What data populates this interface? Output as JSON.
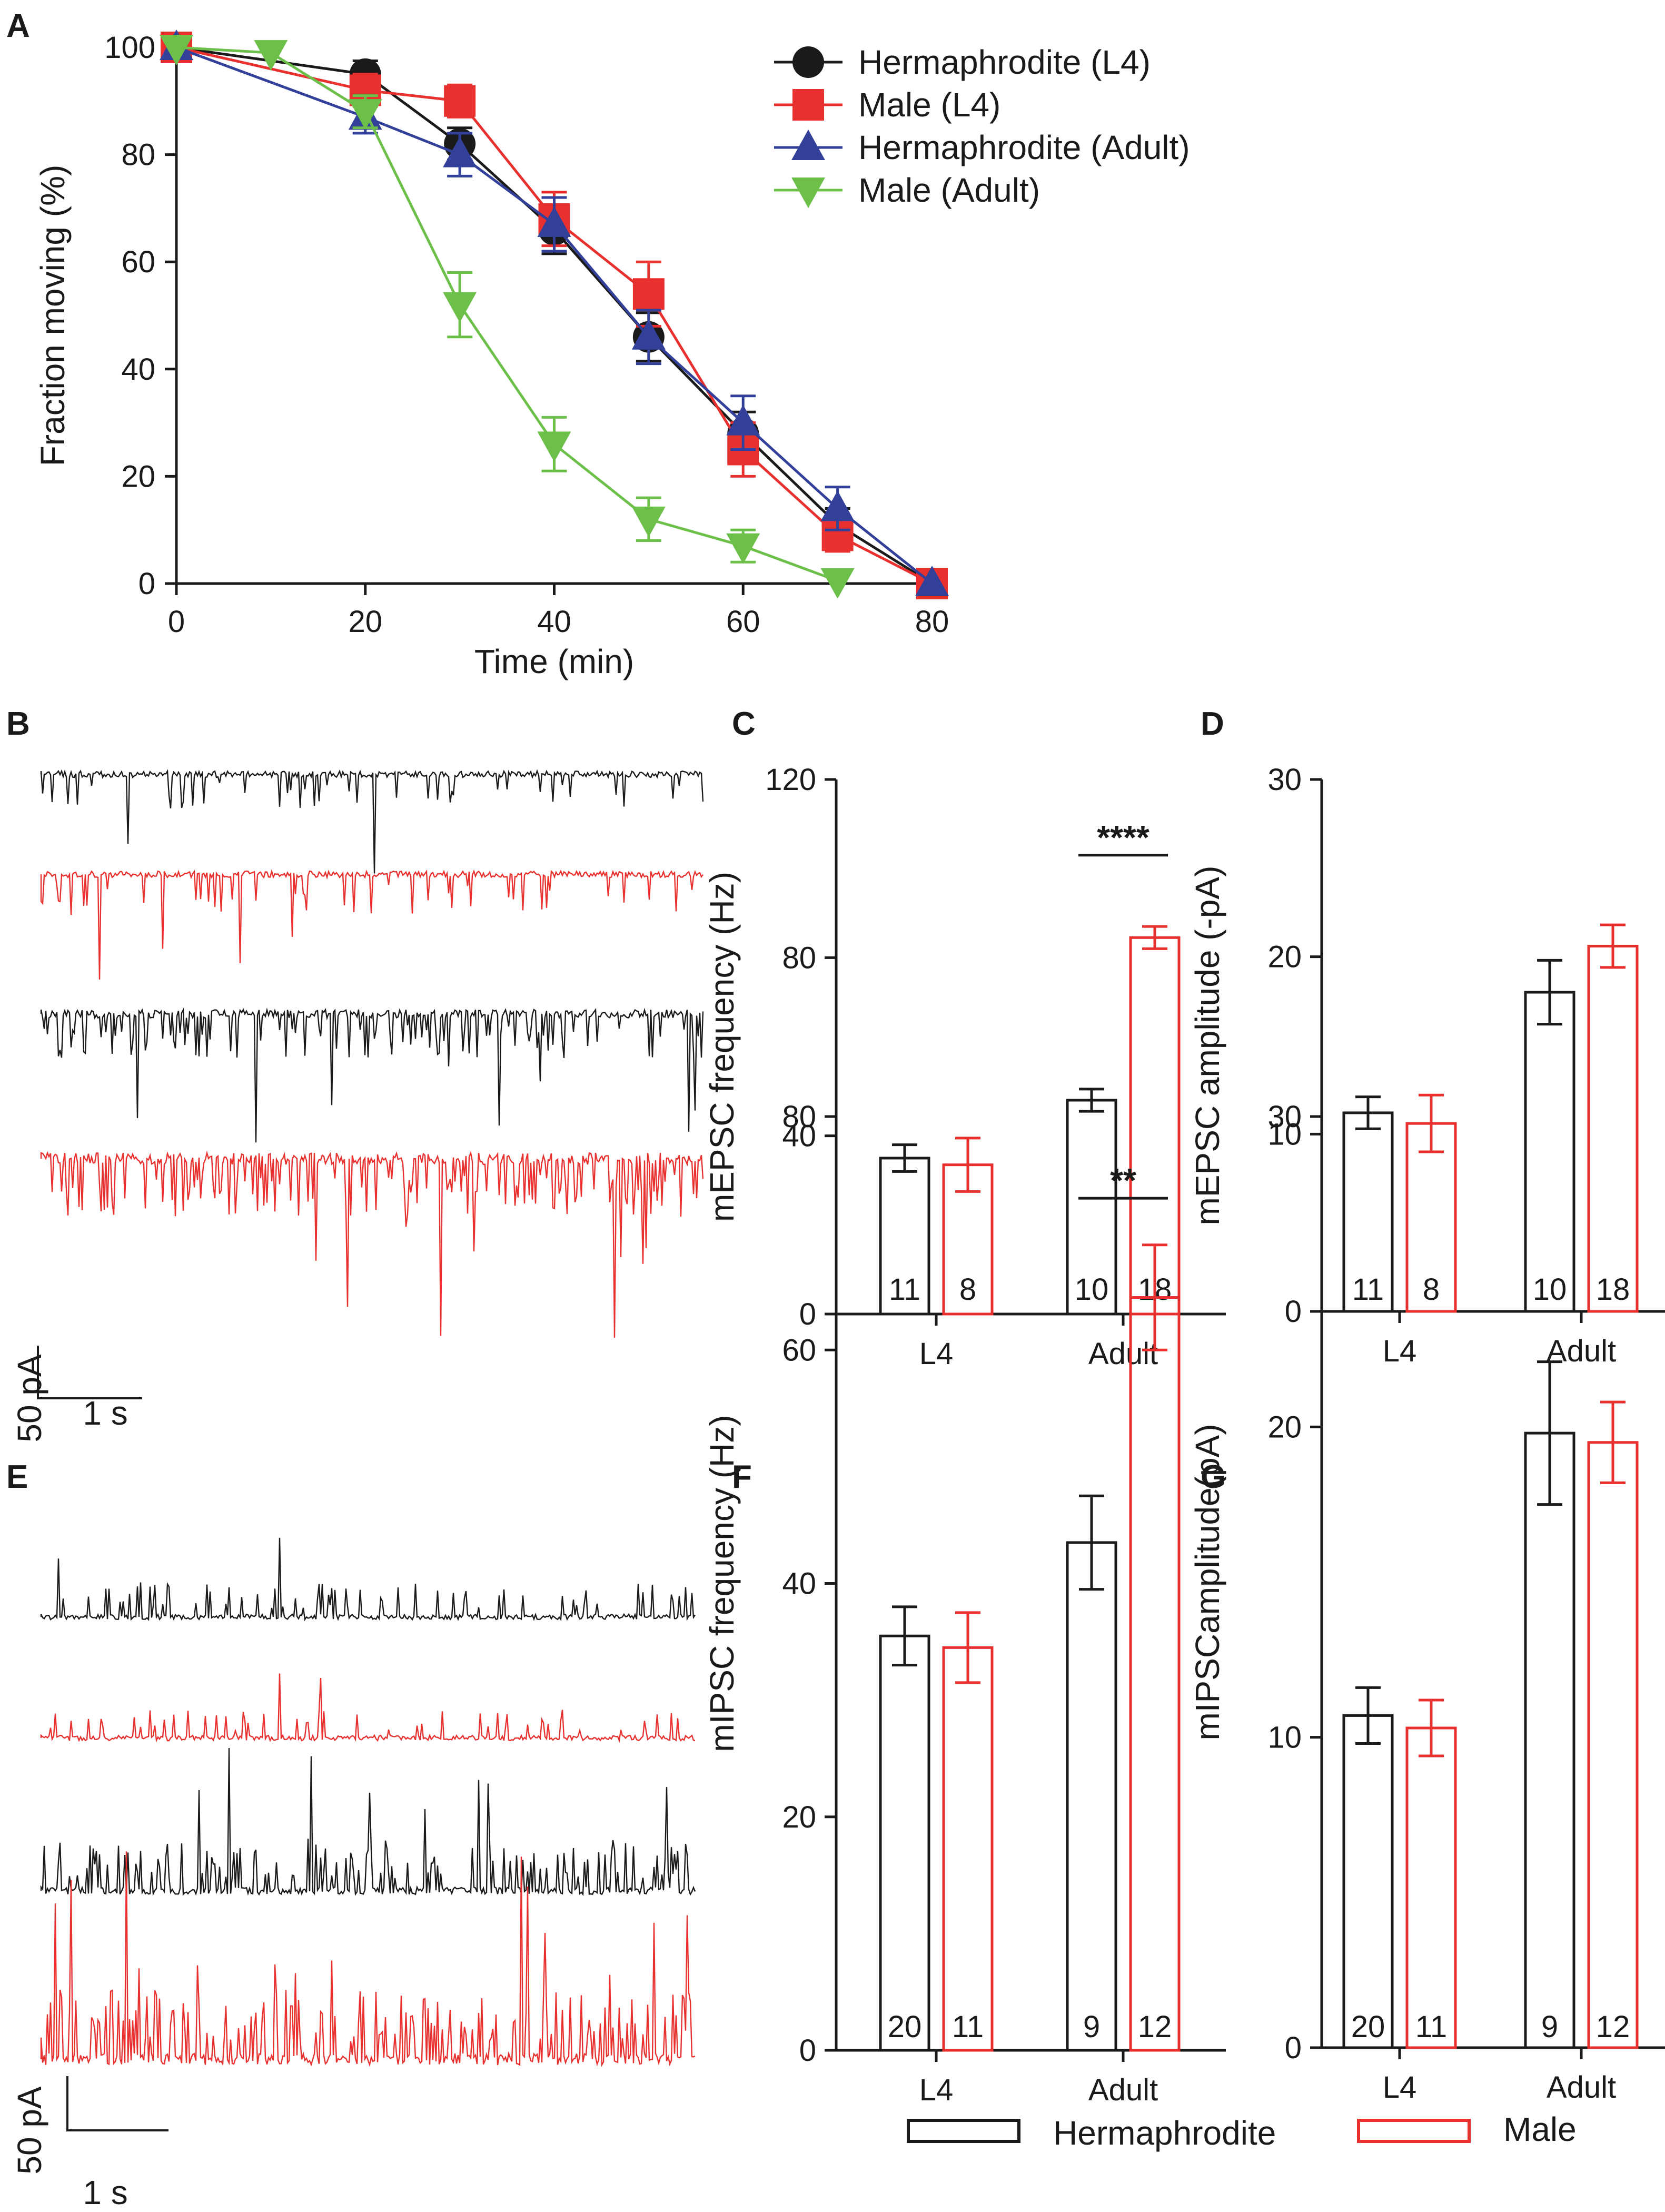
{
  "colors": {
    "black": "#1a1a1a",
    "red": "#e8312f",
    "blue": "#33409a",
    "green": "#6cc04a"
  },
  "panel_letters": {
    "A": "A",
    "B": "B",
    "C": "C",
    "D": "D",
    "E": "E",
    "F": "F",
    "G": "G"
  },
  "chart_data": [
    {
      "id": "A",
      "type": "line",
      "xlabel": "Time (min)",
      "ylabel": "Fraction moving (%)",
      "xlim": [
        0,
        80
      ],
      "ylim": [
        0,
        100
      ],
      "xticks": [
        "0",
        "20",
        "40",
        "60",
        "80"
      ],
      "yticks": [
        "0",
        "20",
        "40",
        "60",
        "80",
        "100"
      ],
      "legend_position": "top-right",
      "series": [
        {
          "name": "Hermaphrodite (L4)",
          "color": "#1a1a1a",
          "marker": "circle",
          "x": [
            0,
            20,
            30,
            40,
            50,
            60,
            70,
            80
          ],
          "y": [
            100,
            95,
            82,
            66,
            46,
            28,
            11,
            0
          ],
          "err": [
            0,
            2.5,
            3,
            4.5,
            4.5,
            4,
            3,
            0
          ]
        },
        {
          "name": "Male (L4)",
          "color": "#e8312f",
          "marker": "square",
          "x": [
            0,
            20,
            30,
            40,
            50,
            60,
            70,
            80
          ],
          "y": [
            100,
            92,
            90,
            68,
            54,
            25,
            9,
            0
          ],
          "err": [
            0,
            3,
            3,
            5,
            6,
            5,
            3,
            0
          ]
        },
        {
          "name": "Hermaphrodite (Adult)",
          "color": "#33409a",
          "marker": "triangle-up",
          "x": [
            0,
            20,
            30,
            40,
            50,
            60,
            70,
            80
          ],
          "y": [
            100,
            87,
            80,
            67,
            46,
            30,
            14,
            0
          ],
          "err": [
            0,
            3,
            4,
            5,
            5,
            5,
            4,
            0
          ]
        },
        {
          "name": "Male (Adult)",
          "color": "#6cc04a",
          "marker": "triangle-down",
          "x": [
            0,
            10,
            20,
            30,
            40,
            50,
            60,
            70
          ],
          "y": [
            100,
            99,
            88,
            52,
            26,
            12,
            7,
            0.5
          ],
          "err": [
            0,
            0,
            3,
            6,
            5,
            4,
            3,
            0
          ]
        }
      ]
    },
    {
      "id": "C",
      "type": "bar",
      "ylabel": "mEPSC frequency (Hz)",
      "ylim": [
        0,
        120
      ],
      "yticks": [
        "0",
        "40",
        "80",
        "120"
      ],
      "categories": [
        "L4",
        "Adult"
      ],
      "series": [
        {
          "name": "Hermaphrodite",
          "color": "#1a1a1a",
          "values": [
            35,
            48
          ],
          "err": [
            3,
            2.5
          ],
          "n": [
            "11",
            "10"
          ]
        },
        {
          "name": "Male",
          "color": "#e8312f",
          "values": [
            33.5,
            84.5
          ],
          "err": [
            6,
            2.5
          ],
          "n": [
            "8",
            "18"
          ]
        }
      ],
      "significance": {
        "category": 1,
        "label": "****",
        "y": 103
      }
    },
    {
      "id": "D",
      "type": "bar",
      "ylabel": "mEPSC amplitude (-pA)",
      "ylim": [
        0,
        30
      ],
      "yticks": [
        "0",
        "10",
        "20",
        "30"
      ],
      "categories": [
        "L4",
        "Adult"
      ],
      "series": [
        {
          "name": "Hermaphrodite",
          "color": "#1a1a1a",
          "values": [
            11.2,
            18
          ],
          "err": [
            0.9,
            1.8
          ],
          "n": [
            "11",
            "10"
          ]
        },
        {
          "name": "Male",
          "color": "#e8312f",
          "values": [
            10.6,
            20.6
          ],
          "err": [
            1.6,
            1.2
          ],
          "n": [
            "8",
            "18"
          ]
        }
      ]
    },
    {
      "id": "F",
      "type": "bar",
      "ylabel": "mIPSC frequency (Hz)",
      "ylim": [
        0,
        80
      ],
      "yticks": [
        "0",
        "20",
        "40",
        "60",
        "80"
      ],
      "categories": [
        "L4",
        "Adult"
      ],
      "series": [
        {
          "name": "Hermaphrodite",
          "color": "#1a1a1a",
          "values": [
            35.5,
            43.5
          ],
          "err": [
            2.5,
            4
          ],
          "n": [
            "20",
            "9"
          ]
        },
        {
          "name": "Male",
          "color": "#e8312f",
          "values": [
            34.5,
            64.5
          ],
          "err": [
            3,
            4.5
          ],
          "n": [
            "11",
            "12"
          ]
        }
      ],
      "significance": {
        "category": 1,
        "label": "**",
        "y": 73
      }
    },
    {
      "id": "G",
      "type": "bar",
      "ylabel": "mIPSCamplitude(pA)",
      "ylim": [
        0,
        30
      ],
      "yticks": [
        "0",
        "10",
        "20",
        "30"
      ],
      "categories": [
        "L4",
        "Adult"
      ],
      "series": [
        {
          "name": "Hermaphrodite",
          "color": "#1a1a1a",
          "values": [
            10.7,
            19.8
          ],
          "err": [
            0.9,
            2.3
          ],
          "n": [
            "20",
            "9"
          ]
        },
        {
          "name": "Male",
          "color": "#e8312f",
          "values": [
            10.3,
            19.5
          ],
          "err": [
            0.9,
            1.3
          ],
          "n": [
            "11",
            "12"
          ]
        }
      ]
    }
  ],
  "traces": {
    "B": {
      "scale_current": "50 pA",
      "scale_time": "1 s"
    },
    "E": {
      "scale_current": "50 pA",
      "scale_time": "1 s"
    }
  },
  "bottom_legend": {
    "hermaphrodite": "Hermaphrodite",
    "male": "Male"
  }
}
